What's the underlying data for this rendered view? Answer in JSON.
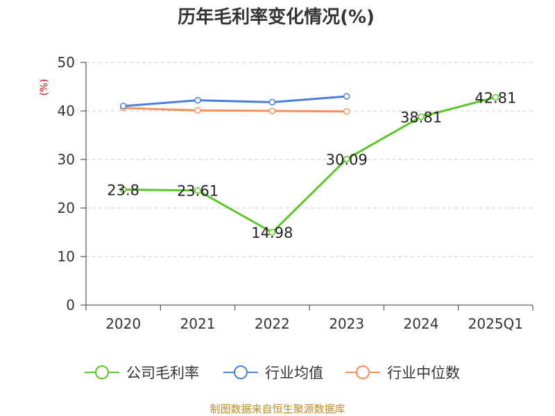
{
  "chart_data": {
    "type": "line",
    "title": "历年毛利率变化情况(%)",
    "unit_label": "(%)",
    "categories": [
      "2020",
      "2021",
      "2022",
      "2023",
      "2024",
      "2025Q1"
    ],
    "y_ticks": [
      "0",
      "10",
      "20",
      "30",
      "40",
      "50"
    ],
    "ylim": [
      0,
      50
    ],
    "grid": true,
    "legend_position": "bottom",
    "series": [
      {
        "name": "公司毛利率",
        "color": "#5cc52a",
        "values": [
          23.8,
          23.61,
          14.98,
          30.09,
          38.81,
          42.81
        ],
        "labels": [
          "23.8",
          "23.61",
          "14.98",
          "30.09",
          "38.81",
          "42.81"
        ],
        "show_labels": true
      },
      {
        "name": "行业均值",
        "color": "#4a7fdc",
        "values": [
          41.0,
          42.2,
          41.8,
          43.0,
          null,
          null
        ],
        "show_labels": false
      },
      {
        "name": "行业中位数",
        "color": "#f6905a",
        "values": [
          40.6,
          40.1,
          40.0,
          39.9,
          null,
          null
        ],
        "show_labels": false
      }
    ]
  },
  "footer": {
    "source": "制图数据来自恒生聚源数据库"
  }
}
